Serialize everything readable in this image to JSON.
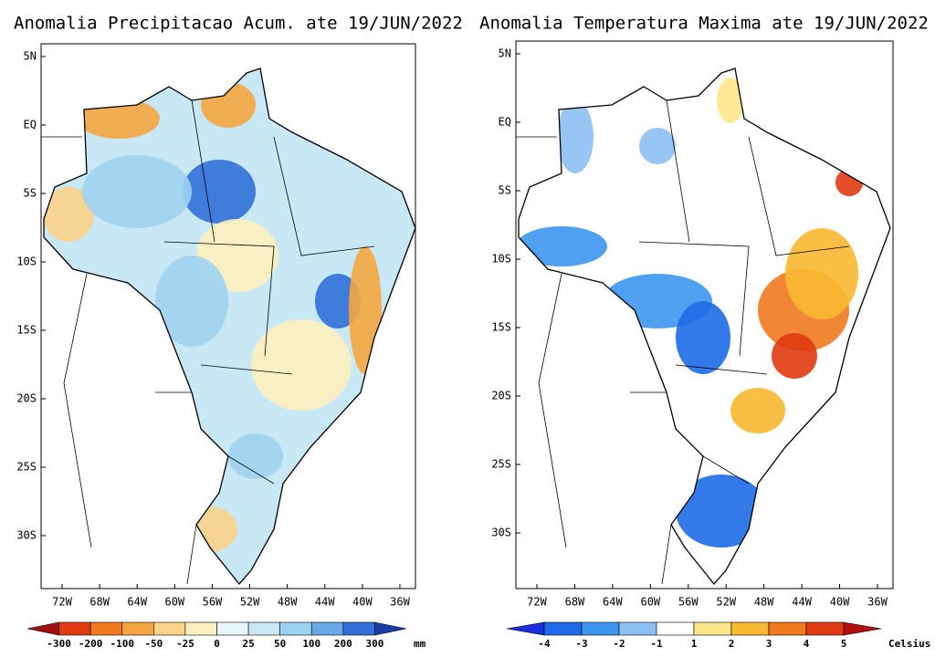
{
  "panels": [
    {
      "title": "Anomalia Precipitacao Acum. ate 19/JUN/2022",
      "lat_labels": [
        "5N",
        "EQ",
        "5S",
        "10S",
        "15S",
        "20S",
        "25S",
        "30S"
      ],
      "lon_labels": [
        "72W",
        "68W",
        "64W",
        "60W",
        "56W",
        "52W",
        "48W",
        "44W",
        "40W",
        "36W"
      ],
      "colorbar": {
        "labels": [
          "-300",
          "-200",
          "-100",
          "-50",
          "-25",
          "0",
          "25",
          "50",
          "100",
          "200",
          "300"
        ],
        "colors": [
          "#a01010",
          "#e03a10",
          "#f07a20",
          "#f5a640",
          "#fad28a",
          "#fdf0c0",
          "#e8f6fb",
          "#c8e8f6",
          "#9fd2f0",
          "#6aa8e8",
          "#3070d8",
          "#1a3aa8"
        ],
        "unit": "mm"
      }
    },
    {
      "title": "Anomalia Temperatura Maxima ate 19/JUN/2022",
      "lat_labels": [
        "5N",
        "EQ",
        "5S",
        "10S",
        "15S",
        "20S",
        "25S",
        "30S"
      ],
      "lon_labels": [
        "72W",
        "68W",
        "64W",
        "60W",
        "56W",
        "52W",
        "48W",
        "44W",
        "40W",
        "36W"
      ],
      "colorbar": {
        "labels": [
          "-4",
          "-3",
          "-2",
          "-1",
          "1",
          "2",
          "3",
          "4",
          "5"
        ],
        "colors": [
          "#1a2ee0",
          "#1e6ae8",
          "#3c96ee",
          "#8cc0f4",
          "#ffffff",
          "#fde68a",
          "#f8b830",
          "#f07a20",
          "#e03a10",
          "#b01010"
        ],
        "unit": "Celsius"
      }
    }
  ]
}
